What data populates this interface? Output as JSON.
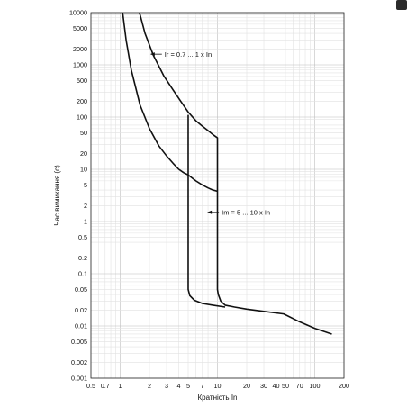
{
  "chart_data": {
    "type": "line",
    "title": "",
    "xlabel": "Кратність In",
    "ylabel": "Час вимикання (с)",
    "x_scale": "log",
    "y_scale": "log",
    "xlim": [
      0.5,
      200
    ],
    "ylim": [
      0.001,
      10000
    ],
    "grid": true,
    "x_ticks": [
      0.5,
      0.7,
      1,
      2,
      3,
      4,
      5,
      7,
      10,
      20,
      30,
      40,
      50,
      70,
      100,
      200
    ],
    "x_tick_labels": [
      "0.5",
      "0.7",
      "1",
      "2",
      "3",
      "4",
      "5",
      "7",
      "10",
      "20",
      "30",
      "40",
      "50",
      "70",
      "100",
      "200"
    ],
    "y_ticks": [
      0.001,
      0.002,
      0.005,
      0.01,
      0.02,
      0.05,
      0.1,
      0.2,
      0.5,
      1,
      2,
      5,
      10,
      20,
      50,
      100,
      200,
      500,
      1000,
      2000,
      5000,
      10000
    ],
    "y_tick_labels": [
      "0.001",
      "0.002",
      "0.005",
      "0.01",
      "0.02",
      "0.05",
      "0.1",
      "0.2",
      "0.5",
      "1",
      "2",
      "5",
      "10",
      "20",
      "50",
      "100",
      "200",
      "500",
      "1000",
      "2000",
      "5000",
      "10000"
    ],
    "series": [
      {
        "role": "upper-bound",
        "x": [
          1.58,
          1.8,
          2.2,
          2.8,
          3.5,
          4.2,
          5,
          6,
          7,
          8,
          9,
          10,
          10,
          10.2,
          10.8,
          12,
          15,
          20,
          30,
          48,
          70,
          100,
          150
        ],
        "y": [
          10000,
          4000,
          1500,
          620,
          330,
          200,
          125,
          85,
          67,
          55,
          46,
          40,
          0.05,
          0.04,
          0.03,
          0.025,
          0.023,
          0.021,
          0.019,
          0.017,
          0.012,
          0.009,
          0.007
        ]
      },
      {
        "role": "lower-bound",
        "x": [
          1.06,
          1.15,
          1.3,
          1.6,
          2,
          2.5,
          3,
          3.5,
          4,
          4.5,
          5,
          6,
          7,
          8,
          9,
          10,
          5,
          5,
          5.2,
          5.8,
          7,
          9,
          12
        ],
        "y": [
          10000,
          3000,
          800,
          170,
          60,
          28,
          18,
          13,
          10,
          8.6,
          7.8,
          6,
          5,
          4.4,
          4,
          3.8,
          110,
          0.05,
          0.038,
          0.031,
          0.027,
          0.025,
          0.023
        ],
        "break_before_index": 16
      }
    ],
    "annotations": [
      {
        "text": "Ir = 0.7 ... 1 x In",
        "x": 2.8,
        "y": 1600
      },
      {
        "text": "Im = 5 ... 10 x In",
        "x": 10.8,
        "y": 1.5
      }
    ]
  },
  "ui": {
    "corner_tab_color": "#2b2b2b"
  }
}
